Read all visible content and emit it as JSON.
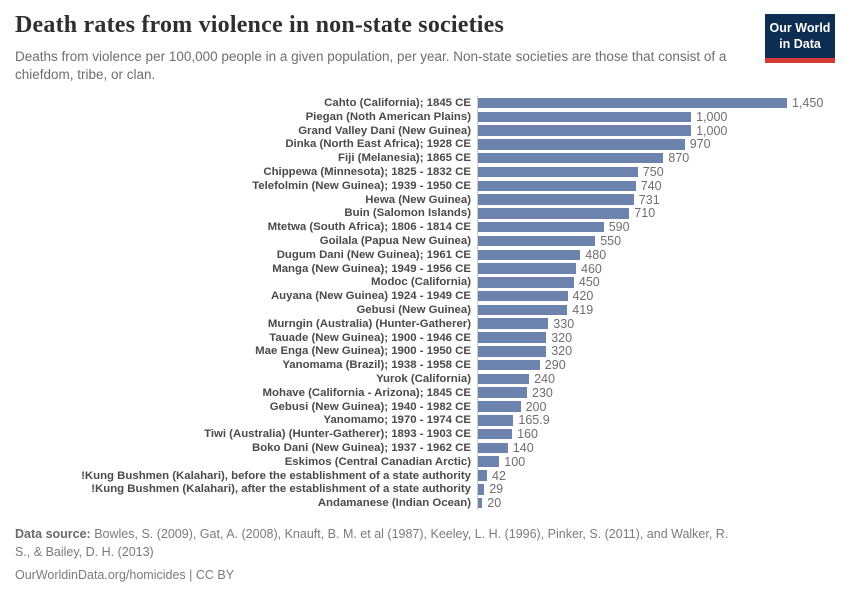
{
  "header": {
    "title": "Death rates from violence in non-state societies",
    "subtitle": "Deaths from violence per 100,000 people in a given population, per year. Non-state societies are those that consist of a chiefdom, tribe, or clan.",
    "logo": {
      "line1": "Our World",
      "line2": "in Data",
      "background_color": "#0d2d52",
      "stripe_color": "#d43d33"
    }
  },
  "chart_data": {
    "type": "bar",
    "orientation": "horizontal",
    "title": "Death rates from violence in non-state societies",
    "xlabel": "",
    "ylabel": "",
    "xlim": [
      0,
      1450
    ],
    "grid": false,
    "legend": false,
    "bar_color": "#6c84ad",
    "categories": [
      "Cahto (California); 1845 CE",
      "Piegan (Noth American Plains)",
      "Grand Valley Dani (New Guinea)",
      "Dinka (North East Africa); 1928 CE",
      "Fiji (Melanesia); 1865 CE",
      "Chippewa (Minnesota); 1825 - 1832 CE",
      "Telefolmin (New Guinea); 1939 - 1950 CE",
      "Hewa (New Guinea)",
      "Buin (Salomon Islands)",
      "Mtetwa (South Africa); 1806 - 1814 CE",
      "Goilala (Papua New Guinea)",
      "Dugum Dani (New Guinea); 1961 CE",
      "Manga (New Guinea); 1949 - 1956 CE",
      "Modoc (California)",
      "Auyana (New Guinea) 1924 - 1949 CE",
      "Gebusi (New Guinea)",
      "Murngin (Australia) (Hunter-Gatherer)",
      "Tauade (New Guinea); 1900 - 1946 CE",
      "Mae Enga (New Guinea); 1900 - 1950 CE",
      "Yanomama (Brazil); 1938 - 1958 CE",
      "Yurok (California)",
      "Mohave (California - Arizona); 1845 CE",
      "Gebusi (New Guinea); 1940 - 1982 CE",
      "Yanomamo; 1970 - 1974 CE",
      "Tiwi (Australia) (Hunter-Gatherer); 1893 - 1903 CE",
      "Boko Dani (New Guinea); 1937 - 1962 CE",
      "Eskimos (Central Canadian Arctic)",
      "!Kung Bushmen (Kalahari), before the establishment of a state authority",
      "!Kung Bushmen (Kalahari), after the establishment of a state authority",
      "Andamanese (Indian Ocean)"
    ],
    "values": [
      1450,
      1000,
      1000,
      970,
      870,
      750,
      740,
      731,
      710,
      590,
      550,
      480,
      460,
      450,
      420,
      419,
      330,
      320,
      320,
      290,
      240,
      230,
      200,
      165.9,
      160,
      140,
      100,
      42,
      29,
      20
    ],
    "value_labels": [
      "1,450",
      "1,000",
      "1,000",
      "970",
      "870",
      "750",
      "740",
      "731",
      "710",
      "590",
      "550",
      "480",
      "460",
      "450",
      "420",
      "419",
      "330",
      "320",
      "320",
      "290",
      "240",
      "230",
      "200",
      "165.9",
      "160",
      "140",
      "100",
      "42",
      "29",
      "20"
    ]
  },
  "footer": {
    "source_label": "Data source:",
    "source_text": " Bowles, S. (2009), Gat, A. (2008), Knauft, B. M. et al (1987), Keeley, L. H. (1996), Pinker, S. (2011), and Walker, R. S., & Bailey, D. H. (2013)",
    "link_text": "OurWorldinData.org/homicides | CC BY"
  }
}
